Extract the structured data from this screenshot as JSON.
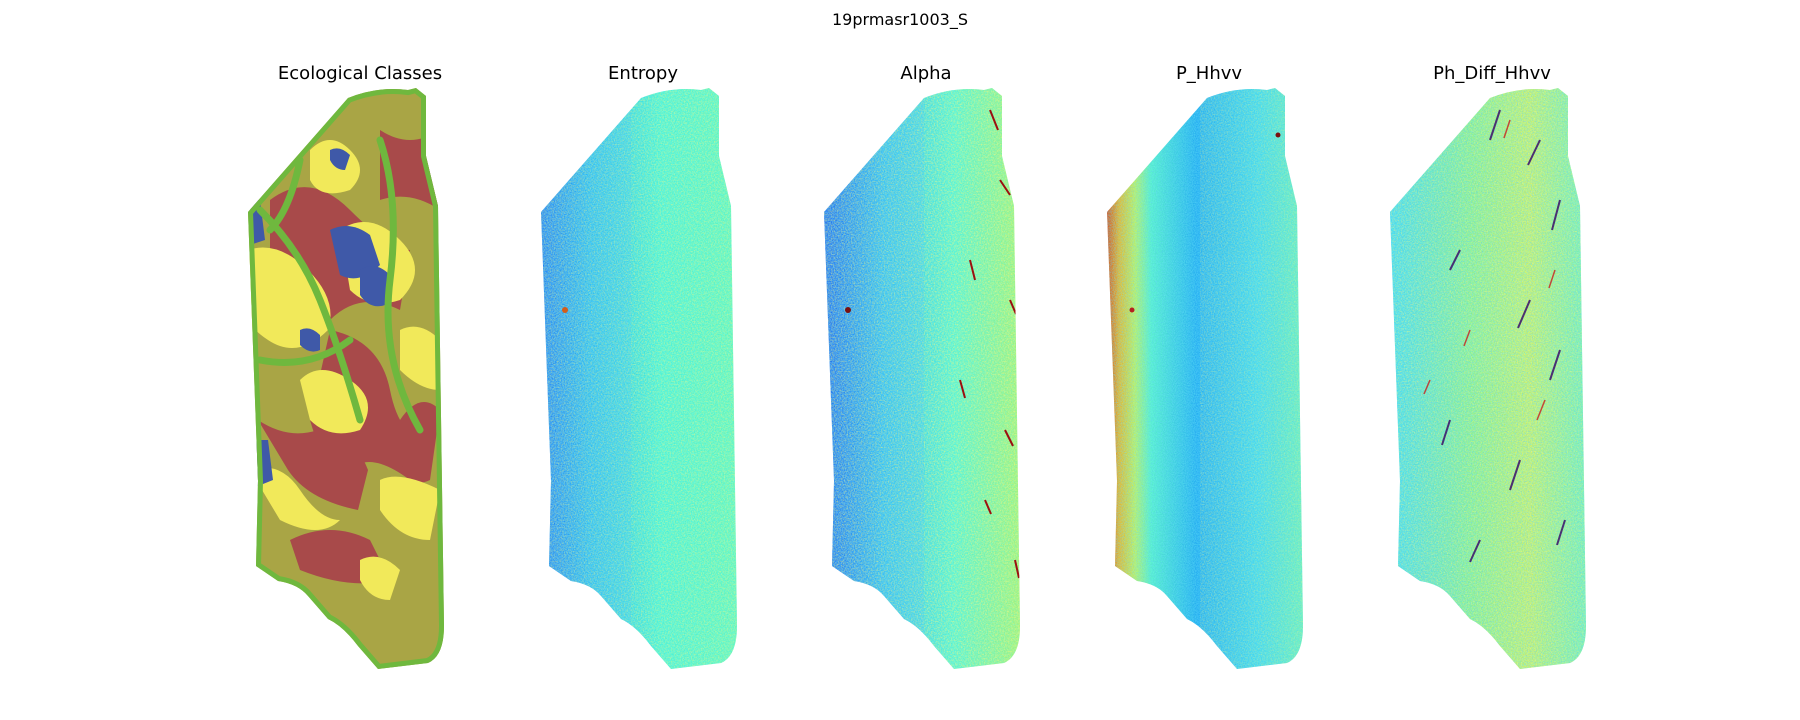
{
  "figure": {
    "title": "19prmasr1003_S",
    "panels": [
      {
        "title": "Ecological Classes",
        "kind": "classes",
        "colors": [
          "#a9a545",
          "#a84a4a",
          "#f1e95a",
          "#3f59a8",
          "#6fb83e"
        ]
      },
      {
        "title": "Entropy",
        "kind": "jet-cool"
      },
      {
        "title": "Alpha",
        "kind": "jet-edges"
      },
      {
        "title": "P_Hhvv",
        "kind": "jet-gradient"
      },
      {
        "title": "Ph_Diff_Hhvv",
        "kind": "jet-speckle"
      }
    ]
  }
}
